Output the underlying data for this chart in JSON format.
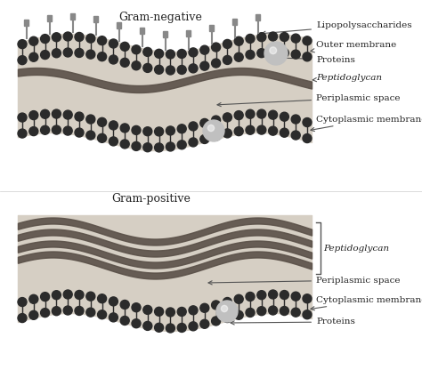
{
  "title_top": "Gram-negative",
  "title_bottom": "Gram-positive",
  "bg_color": "#ffffff",
  "panel_bg": "#d6cfc4",
  "membrane_color": "#2b2b2b",
  "peptido_color": "#5a5048",
  "lps_color": "#888888",
  "protein_color": "#c0c0c0",
  "labels_neg": [
    "Lipopolysaccharides",
    "Outer membrane",
    "Proteins",
    "Peptidoglycan",
    "Periplasmic space",
    "Cytoplasmic membrane"
  ],
  "labels_pos": [
    "Peptidoglycan",
    "Periplasmic space",
    "Cytoplasmic membrane",
    "Proteins"
  ],
  "label_fontsize": 7.5,
  "title_fontsize": 9
}
